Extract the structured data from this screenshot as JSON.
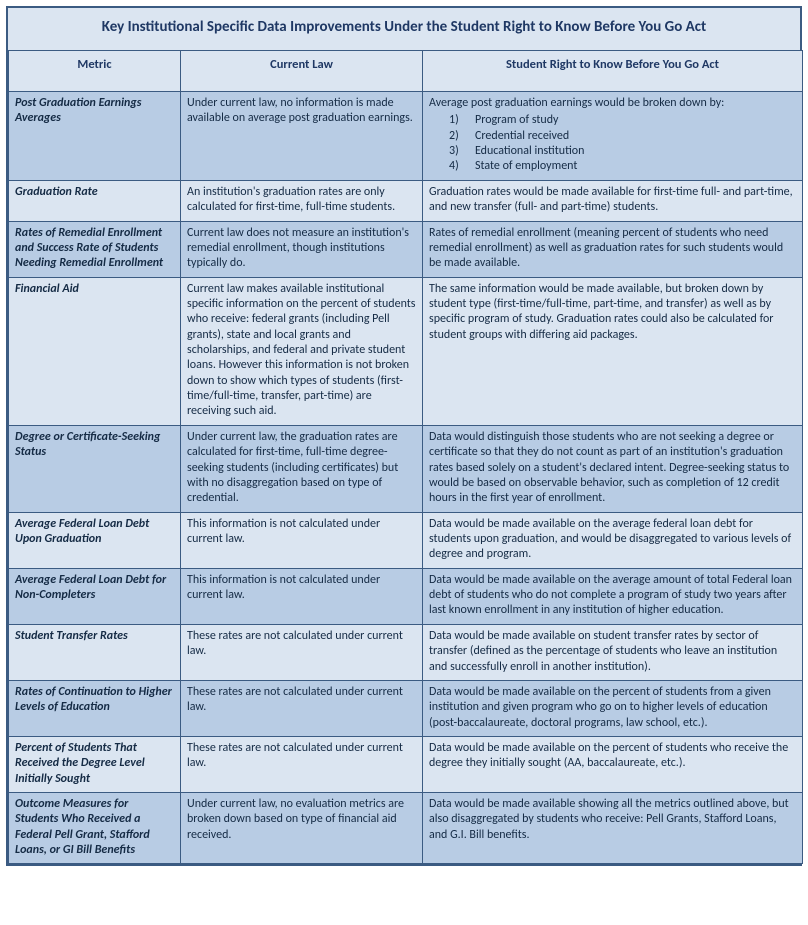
{
  "title": "Key Institutional Specific Data Improvements Under the Student Right to Know Before You Go Act",
  "columns": {
    "metric": "Metric",
    "current": "Current Law",
    "proposed": "Student Right to Know Before You Go Act"
  },
  "col_widths": {
    "metric": 172,
    "current": 242,
    "proposed": 380
  },
  "earnings_list_intro": "Average post graduation earnings would be broken down by:",
  "earnings_items": [
    "Program of study",
    "Credential received",
    "Educational institution",
    "State of employment"
  ],
  "rows": [
    {
      "metric": "Post Graduation Earnings Averages",
      "current": "Under current law, no information is made available on average post graduation earnings.",
      "proposed": ""
    },
    {
      "metric": "Graduation Rate",
      "current": "An institution's graduation rates are only calculated for first-time, full-time students.",
      "proposed": "Graduation rates would be made available for first-time full- and part-time, and new transfer (full- and part-time) students."
    },
    {
      "metric": "Rates of Remedial Enrollment and Success Rate of Students Needing Remedial Enrollment",
      "current": "Current law does not measure an institution's remedial enrollment, though institutions typically do.",
      "proposed": "Rates of remedial enrollment (meaning percent of students who need remedial enrollment) as well as graduation rates for such students would be made available."
    },
    {
      "metric": "Financial Aid",
      "current": "Current law makes available institutional specific information on the percent of students who receive: federal grants (including Pell grants), state and local grants and scholarships, and federal and private student loans. However this information is not broken down to show which types of students (first-time/full-time, transfer, part-time) are receiving such aid.",
      "proposed": "The same information would be made available, but broken down by student type (first-time/full-time, part-time, and transfer) as well as by specific program of study. Graduation rates could also be calculated for student groups with differing aid packages."
    },
    {
      "metric": "Degree or Certificate-Seeking Status",
      "current": "Under current law, the graduation rates are calculated for first-time, full-time degree-seeking students (including certificates) but with no disaggregation based on type of credential.",
      "proposed": "Data would distinguish those students who are not seeking a degree or certificate so that they do not count as part of an institution's graduation rates based solely on a student's declared intent. Degree-seeking status to would be based on observable behavior, such as completion of 12 credit hours in the first year of enrollment."
    },
    {
      "metric": "Average Federal Loan Debt Upon Graduation",
      "current": "This information is not calculated under current law.",
      "proposed": "Data would be made available on the average federal loan debt for students upon graduation, and would be disaggregated to various levels of degree and program."
    },
    {
      "metric": "Average Federal Loan Debt for Non-Completers",
      "current": "This information is not calculated under current law.",
      "proposed": "Data would be made available on the average amount of total Federal loan debt of students who do not complete a program of study two years after last known enrollment in any institution of higher education."
    },
    {
      "metric": "Student Transfer Rates",
      "current": "These rates are not calculated under current law.",
      "proposed": "Data would be made available on student transfer rates by sector of transfer (defined as the percentage of students who leave an institution and successfully enroll in another institution)."
    },
    {
      "metric": "Rates of Continuation to Higher Levels of Education",
      "current": "These rates are not calculated under current law.",
      "proposed": "Data would be made available on the percent of students from a given institution and given program who go on to higher levels of education (post-baccalaureate, doctoral programs, law school, etc.)."
    },
    {
      "metric": "Percent of Students That Received the Degree Level Initially Sought",
      "current": "These rates are not calculated under current law.",
      "proposed": "Data would be made available on the percent of students who receive the degree they initially sought (AA, baccalaureate, etc.)."
    },
    {
      "metric": "Outcome Measures for Students Who Received a Federal Pell Grant, Stafford Loans, or GI Bill Benefits",
      "current": "Under current law, no evaluation metrics are broken down based on type of financial aid received.",
      "proposed": "Data would be made available showing all the metrics outlined above, but also disaggregated by students who receive: Pell Grants, Stafford Loans, and G.I. Bill benefits."
    }
  ],
  "styling": {
    "outer_border_color": "#3b5b82",
    "header_bg": "#dbe5f1",
    "band_bg": "#b8cce4",
    "title_color": "#1f3864",
    "body_text_color": "#152b45",
    "font_family": "Calibri",
    "title_fontsize_pt": 11.5,
    "body_fontsize_pt": 9
  }
}
